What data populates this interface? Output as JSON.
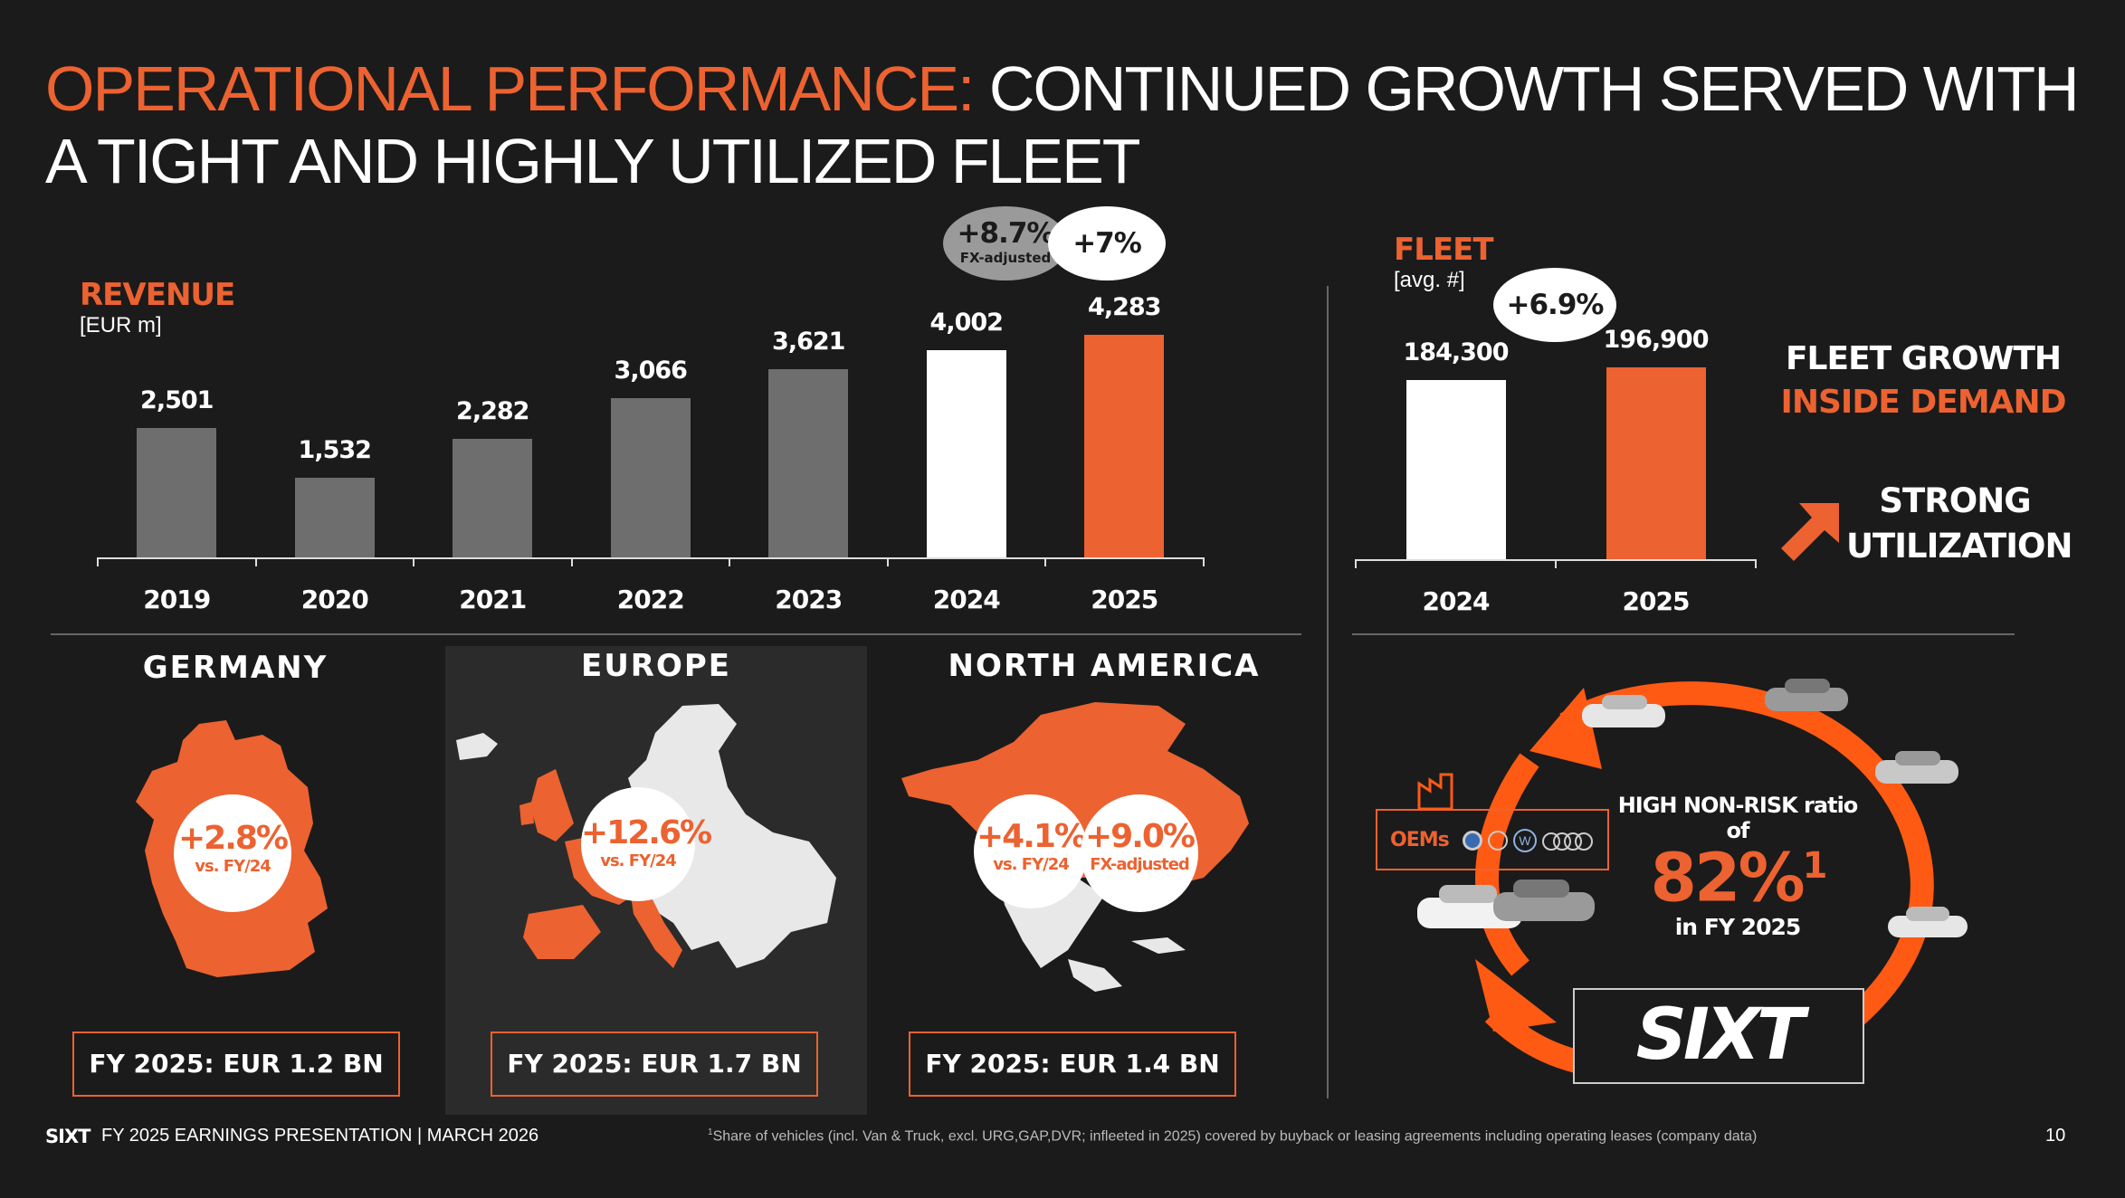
{
  "title": {
    "accent": "OPERATIONAL PERFORMANCE:",
    "line1_rest": " CONTINUED GROWTH SERVED WITH",
    "line2": "A TIGHT AND HIGHLY UTILIZED FLEET"
  },
  "revenue": {
    "label": "REVENUE",
    "unit": "[EUR m]",
    "growth_fx": "+8.7%",
    "growth_fx_note": "FX-adjusted",
    "growth": "+7%",
    "value_labels": [
      "2,501",
      "1,532",
      "2,282",
      "3,066",
      "3,621",
      "4,002",
      "4,283"
    ]
  },
  "fleet": {
    "label": "FLEET",
    "unit": "[avg. #]",
    "growth": "+6.9%",
    "value_labels": [
      "184,300",
      "196,900"
    ],
    "growth_line1": "FLEET GROWTH",
    "growth_line2": "INSIDE DEMAND",
    "util_line1": "STRONG",
    "util_line2": "UTILIZATION"
  },
  "chart_data": [
    {
      "type": "bar",
      "title": "REVENUE",
      "ylabel": "[EUR m]",
      "categories": [
        "2019",
        "2020",
        "2021",
        "2022",
        "2023",
        "2024",
        "2025"
      ],
      "values": [
        2501,
        1532,
        2282,
        3066,
        3621,
        4002,
        4283
      ],
      "colors": [
        "#6e6e6e",
        "#6e6e6e",
        "#6e6e6e",
        "#6e6e6e",
        "#6e6e6e",
        "#ffffff",
        "#ec6230"
      ],
      "ylim": [
        0,
        4500
      ]
    },
    {
      "type": "bar",
      "title": "FLEET",
      "ylabel": "[avg. #]",
      "categories": [
        "2024",
        "2025"
      ],
      "values": [
        184300,
        196900
      ],
      "colors": [
        "#ffffff",
        "#ec6230"
      ],
      "ylim": [
        0,
        280000
      ]
    }
  ],
  "regions": [
    {
      "name": "GERMANY",
      "badge": "+2.8%",
      "badge_note": "vs. FY/24",
      "revenue": "FY 2025: EUR 1.2 BN"
    },
    {
      "name": "EUROPE",
      "badge": "+12.6%",
      "badge_note": "vs. FY/24",
      "revenue": "FY 2025: EUR 1.7 BN"
    },
    {
      "name": "NORTH AMERICA",
      "badge": "+4.1%",
      "badge_note": "vs. FY/24",
      "badge2": "+9.0%",
      "badge2_note": "FX-adjusted",
      "revenue": "FY 2025: EUR 1.4 BN"
    }
  ],
  "nonrisk": {
    "oems": "OEMs",
    "heading": "HIGH NON-RISK ratio of",
    "value": "82%",
    "sup": "1",
    "period": "in  FY 2025",
    "logo": "SIXT"
  },
  "footer": {
    "logo": "SIXT",
    "text": "FY 2025 EARNINGS PRESENTATION | MARCH 2026",
    "footnote": "Share of vehicles (incl. Van & Truck, excl. URG,GAP,DVR; infleeted in 2025) covered by buyback or leasing agreements including operating leases (company data)",
    "footnote_mark": "1",
    "page": "10"
  },
  "colors": {
    "accent": "#ec6230",
    "grey_bar": "#6e6e6e",
    "background": "#1b1b1b",
    "highlight": "#ffffff"
  }
}
